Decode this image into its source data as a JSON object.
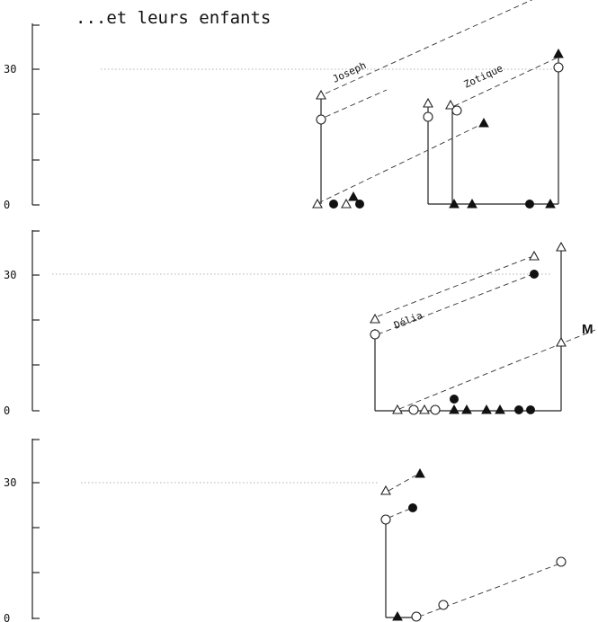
{
  "title": "...et leurs enfants",
  "panels": [
    {
      "ticks": [
        "0",
        "30"
      ],
      "labels": [
        "Joseph",
        "Zotique"
      ],
      "marker_label": "",
      "symbols": [
        "open-triangle",
        "open-circle",
        "open-triangle",
        "solid-circle",
        "solid-triangle",
        "open-triangle",
        "solid-circle",
        "open-triangle",
        "open-circle",
        "solid-triangle",
        "solid-triangle",
        "open-triangle",
        "open-circle",
        "solid-triangle",
        "solid-circle",
        "solid-triangle",
        "solid-triangle",
        "open-circle"
      ]
    },
    {
      "ticks": [
        "0",
        "30"
      ],
      "labels": [
        "Délia"
      ],
      "marker_label": "M",
      "symbols": [
        "open-triangle",
        "open-circle",
        "open-triangle",
        "open-circle",
        "open-triangle",
        "open-circle",
        "solid-circle",
        "solid-triangle",
        "solid-triangle",
        "solid-triangle",
        "solid-triangle",
        "solid-circle",
        "solid-circle",
        "open-triangle",
        "solid-circle",
        "open-triangle"
      ]
    },
    {
      "ticks": [
        "0",
        "30"
      ],
      "labels": [],
      "marker_label": "",
      "symbols": [
        "open-triangle",
        "solid-triangle",
        "open-circle",
        "solid-circle",
        "solid-triangle",
        "open-circle",
        "open-circle",
        "open-circle"
      ]
    }
  ]
}
